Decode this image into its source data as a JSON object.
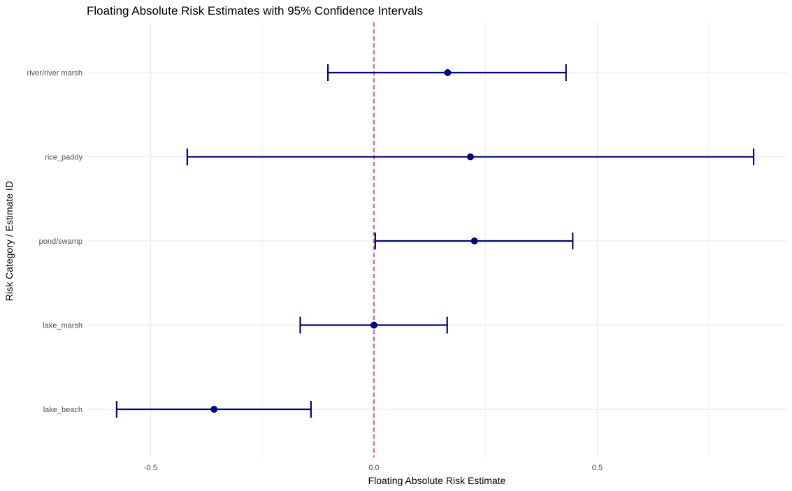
{
  "chart_data": {
    "type": "errorbar",
    "title": "Floating Absolute Risk Estimates with 95% Confidence Intervals",
    "xlabel": "Floating Absolute Risk Estimate",
    "ylabel": "Risk Category / Estimate ID",
    "xlim": [
      -0.64,
      0.925
    ],
    "x_ticks": [
      -0.5,
      0.0,
      0.5
    ],
    "x_tick_labels": [
      "-0.5",
      "0.0",
      "0.5"
    ],
    "reference_line": {
      "x": 0.0,
      "style": "dashed",
      "color": "#ff2a2a"
    },
    "grid": true,
    "marker_color": "#00008b",
    "categories": [
      "river/river_marsh",
      "rice_paddy",
      "pond/swamp",
      "lake_marsh",
      "lake_beach"
    ],
    "category_labels": [
      "river/river  marsh",
      "rice_paddy",
      "pond/swamp",
      "lake_marsh",
      "lake_beach"
    ],
    "estimates": [
      0.165,
      0.216,
      0.225,
      0.0,
      -0.358
    ],
    "lower": [
      -0.103,
      -0.418,
      0.003,
      -0.165,
      -0.576
    ],
    "upper": [
      0.43,
      0.85,
      0.445,
      0.164,
      -0.141
    ]
  }
}
